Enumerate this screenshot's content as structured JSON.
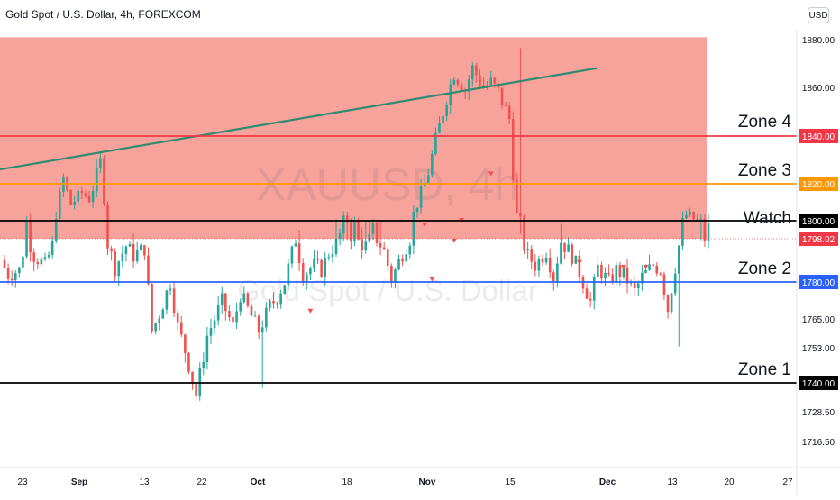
{
  "header": {
    "title": "Gold Spot / U.S. Dollar, 4h, FOREXCOM",
    "currency": "USD"
  },
  "watermark": {
    "symbol": "XAUUSD, 4h",
    "name": "Gold Spot / U.S. Dollar"
  },
  "colors": {
    "up": "#26a69a",
    "down": "#ef5350",
    "zone_fill": "#f8a29c",
    "trendline": "#2e8b6e",
    "zone4": "#f23645",
    "zone3": "#ff9800",
    "watch": "#000000",
    "zone2": "#2962ff",
    "zone1": "#000000",
    "last": "#f23645"
  },
  "chart_data": {
    "type": "candlestick",
    "title": "Gold Spot / U.S. Dollar, 4h, FOREXCOM",
    "y_tick_labels": [
      "1880.00",
      "1860.00",
      "1765.00",
      "1753.00",
      "1728.50",
      "1716.50"
    ],
    "x_tick_labels": [
      "23",
      "Sep",
      "13",
      "22",
      "Oct",
      "18",
      "Nov",
      "15",
      "Dec",
      "13",
      "20",
      "27"
    ],
    "series": [
      {
        "path": [
          [
            0,
            1789
          ],
          [
            2,
            1783
          ],
          [
            5,
            1785
          ],
          [
            7,
            1800
          ],
          [
            9,
            1791
          ],
          [
            12,
            1787
          ],
          [
            14,
            1795
          ],
          [
            17,
            1822
          ],
          [
            19,
            1809
          ],
          [
            22,
            1815
          ],
          [
            24,
            1812
          ],
          [
            27,
            1829
          ],
          [
            29,
            1796
          ],
          [
            31,
            1786
          ],
          [
            34,
            1795
          ],
          [
            36,
            1791
          ],
          [
            39,
            1794
          ],
          [
            41,
            1760
          ],
          [
            43,
            1767
          ],
          [
            46,
            1780
          ],
          [
            48,
            1762
          ],
          [
            51,
            1747
          ],
          [
            53,
            1735
          ],
          [
            56,
            1758
          ],
          [
            58,
            1765
          ],
          [
            60,
            1772
          ],
          [
            63,
            1762
          ],
          [
            65,
            1775
          ],
          [
            68,
            1766
          ],
          [
            70,
            1760
          ],
          [
            73,
            1770
          ],
          [
            75,
            1774
          ],
          [
            77,
            1780
          ],
          [
            80,
            1798
          ],
          [
            82,
            1783
          ],
          [
            85,
            1787
          ],
          [
            87,
            1785
          ],
          [
            89,
            1792
          ],
          [
            92,
            1798
          ],
          [
            94,
            1801
          ],
          [
            97,
            1797
          ],
          [
            99,
            1795
          ],
          [
            102,
            1798
          ],
          [
            104,
            1793
          ],
          [
            106,
            1781
          ],
          [
            109,
            1792
          ],
          [
            111,
            1798
          ],
          [
            114,
            1815
          ],
          [
            116,
            1825
          ],
          [
            118,
            1838
          ],
          [
            121,
            1856
          ],
          [
            123,
            1866
          ],
          [
            126,
            1859
          ],
          [
            128,
            1868
          ],
          [
            131,
            1860
          ],
          [
            133,
            1862
          ],
          [
            135,
            1858
          ],
          [
            138,
            1847
          ],
          [
            140,
            1803
          ],
          [
            143,
            1791
          ],
          [
            145,
            1787
          ],
          [
            148,
            1793
          ],
          [
            150,
            1782
          ],
          [
            152,
            1797
          ],
          [
            155,
            1791
          ],
          [
            157,
            1784
          ],
          [
            160,
            1772
          ],
          [
            162,
            1786
          ],
          [
            165,
            1780
          ],
          [
            167,
            1785
          ],
          [
            169,
            1783
          ],
          [
            172,
            1776
          ],
          [
            174,
            1782
          ],
          [
            177,
            1787
          ],
          [
            179,
            1785
          ],
          [
            181,
            1769
          ],
          [
            184,
            1795
          ],
          [
            186,
            1803
          ],
          [
            189,
            1800
          ],
          [
            191,
            1798
          ]
        ]
      }
    ],
    "lows": [
      1738.0,
      1753.5
    ],
    "highs": [
      1876.5
    ],
    "horizontal_levels": [
      {
        "label": "Zone 4",
        "value": 1840.0,
        "price_label": "1840.00",
        "color": "#f23645"
      },
      {
        "label": "Zone 3",
        "value": 1820.0,
        "price_label": "1820.00",
        "color": "#ff9800"
      },
      {
        "label": "Watch",
        "value": 1800.0,
        "price_label": "1800.00",
        "color": "#000000"
      },
      {
        "label": "Zone 2",
        "value": 1780.0,
        "price_label": "1780.00",
        "color": "#2962ff"
      },
      {
        "label": "Zone 1",
        "value": 1740.0,
        "price_label": "1740.00",
        "color": "#000000"
      }
    ],
    "last_price": {
      "value": 1798.02,
      "label": "1798.02"
    },
    "resistance_zone": {
      "from": 1798.02,
      "to": 1881
    },
    "trendline": {
      "from": 1826,
      "to": 1868
    },
    "down_markers": [
      1824,
      1799.5,
      1800,
      1797,
      1781,
      1768,
      1788,
      1786,
      1786
    ]
  }
}
